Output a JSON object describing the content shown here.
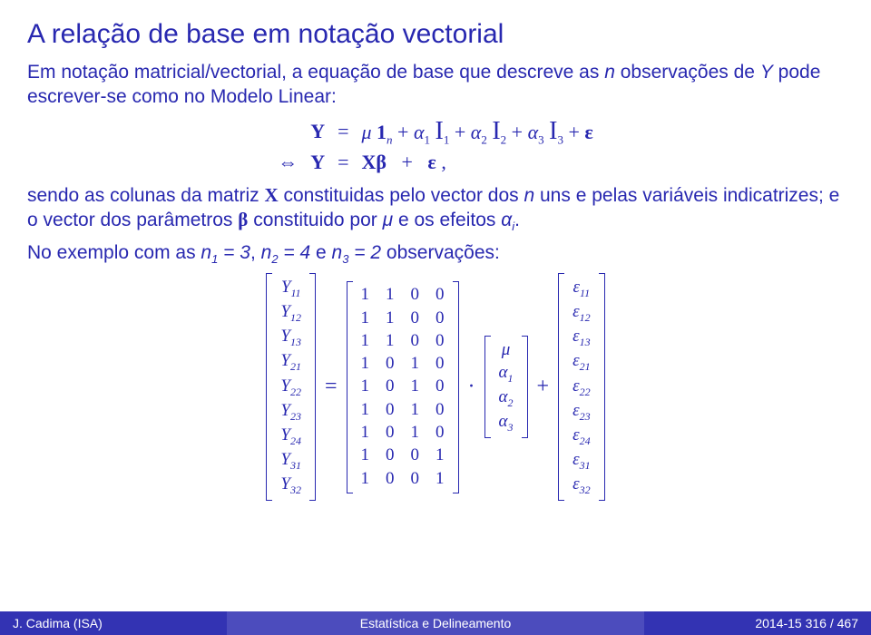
{
  "title": "A relação de base em notação vectorial",
  "para1_a": "Em notação matricial/vectorial, a equação de base que descreve as ",
  "para1_b": " observações de ",
  "para1_c": " pode escrever-se como no Modelo Linear:",
  "n_var": "n",
  "Y_var": "Y",
  "eq": {
    "r1": {
      "iff": "",
      "lhs": "Y",
      "eq": "=",
      "rhs": "μ 1<sub>n</sub> + α<sub>1</sub> 𝓘<sub>1</sub> + α<sub>2</sub> 𝓘<sub>2</sub> + α<sub>3</sub> 𝓘<sub>3</sub> + ε"
    },
    "r2": {
      "iff": "⇔",
      "lhs": "Y",
      "eq": "=",
      "rhs": "Xβ&nbsp;&nbsp;&nbsp;+&nbsp;&nbsp;&nbsp;ε&nbsp;,"
    }
  },
  "para2_a": "sendo as colunas da matriz ",
  "para2_b": " constituidas pelo vector dos ",
  "para2_c": " uns e pelas variáveis indicatrizes; e o vector dos parâmetros ",
  "para2_d": " constituido por ",
  "para2_e": " e os efeitos ",
  "X_var": "X",
  "beta_var": "β",
  "mu_var": "μ",
  "alpha_var": "αᵢ",
  "para3_a": "No exemplo com as ",
  "n1": "n₁ = 3",
  "n2": "n₂ = 4",
  "n3": "n₃ = 2",
  "para3_b": " observações:",
  "Yvec": [
    "Y<span class='s'>11</span>",
    "Y<span class='s'>12</span>",
    "Y<span class='s'>13</span>",
    "Y<span class='s'>21</span>",
    "Y<span class='s'>22</span>",
    "Y<span class='s'>23</span>",
    "Y<span class='s'>24</span>",
    "Y<span class='s'>31</span>",
    "Y<span class='s'>32</span>"
  ],
  "Xmat": [
    [
      "1",
      "1",
      "0",
      "0"
    ],
    [
      "1",
      "1",
      "0",
      "0"
    ],
    [
      "1",
      "1",
      "0",
      "0"
    ],
    [
      "1",
      "0",
      "1",
      "0"
    ],
    [
      "1",
      "0",
      "1",
      "0"
    ],
    [
      "1",
      "0",
      "1",
      "0"
    ],
    [
      "1",
      "0",
      "1",
      "0"
    ],
    [
      "1",
      "0",
      "0",
      "1"
    ],
    [
      "1",
      "0",
      "0",
      "1"
    ]
  ],
  "bvec": [
    "μ",
    "α<span class='s'>1</span>",
    "α<span class='s'>2</span>",
    "α<span class='s'>3</span>"
  ],
  "evec": [
    "ε<span class='s'>11</span>",
    "ε<span class='s'>12</span>",
    "ε<span class='s'>13</span>",
    "ε<span class='s'>21</span>",
    "ε<span class='s'>22</span>",
    "ε<span class='s'>23</span>",
    "ε<span class='s'>24</span>",
    "ε<span class='s'>31</span>",
    "ε<span class='s'>32</span>"
  ],
  "footer": {
    "left": "J. Cadima (ISA)",
    "center": "Estatística e Delineamento",
    "right": "2014-15    316 / 467"
  },
  "colors": {
    "text": "#2828b0",
    "footer_outer": "#3333b3",
    "footer_inner": "#4c4cbd",
    "background": "#ffffff"
  },
  "fonts": {
    "body": "Arial",
    "math": "Times New Roman",
    "title_size": 30,
    "body_size": 21,
    "cell_size": 19,
    "footer_size": 14
  }
}
